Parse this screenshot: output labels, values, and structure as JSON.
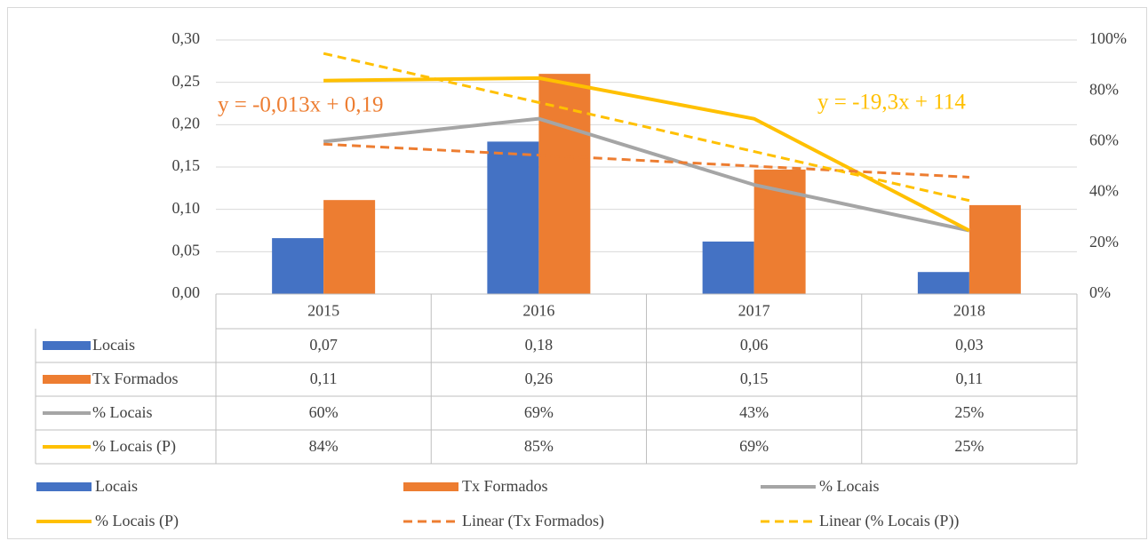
{
  "chart_data": {
    "type": "bar",
    "categories": [
      "2015",
      "2016",
      "2017",
      "2018"
    ],
    "series": [
      {
        "name": "Locais",
        "type": "bar",
        "color": "#4472c4",
        "values": [
          0.066,
          0.18,
          0.062,
          0.026
        ],
        "value_labels": [
          "0,07",
          "0,18",
          "0,06",
          "0,03"
        ]
      },
      {
        "name": "Tx Formados",
        "type": "bar",
        "color": "#ed7d31",
        "values": [
          0.111,
          0.26,
          0.147,
          0.105
        ],
        "value_labels": [
          "0,11",
          "0,26",
          "0,15",
          "0,11"
        ]
      },
      {
        "name": "% Locais",
        "type": "line",
        "axis": "y2",
        "color": "#a5a5a5",
        "values": [
          60,
          69,
          43,
          25
        ],
        "value_labels": [
          "60%",
          "69%",
          "43%",
          "25%"
        ]
      },
      {
        "name": "% Locais (P)",
        "type": "line",
        "axis": "y2",
        "color": "#ffc000",
        "values": [
          84,
          85,
          69,
          25
        ],
        "value_labels": [
          "84%",
          "85%",
          "69%",
          "25%"
        ]
      },
      {
        "name": "Linear (Tx Formados)",
        "type": "line",
        "style": "dashed",
        "color": "#ed7d31",
        "values": [
          0.177,
          0.164,
          0.151,
          0.138
        ]
      },
      {
        "name": "Linear (% Locais (P))",
        "type": "line",
        "style": "dashed",
        "axis": "y2",
        "color": "#ffc000",
        "values": [
          94.7,
          75.4,
          56.1,
          36.8
        ]
      }
    ],
    "annotations": [
      {
        "text": "y = -0,013x + 0,19",
        "color": "#ed7d31"
      },
      {
        "text": "y = -19,3x + 114",
        "color": "#ffc000"
      }
    ],
    "ylim": [
      0,
      0.3
    ],
    "yticks": [
      {
        "value": 0,
        "label": "0,00"
      },
      {
        "value": 0.05,
        "label": "0,05"
      },
      {
        "value": 0.1,
        "label": "0,10"
      },
      {
        "value": 0.15,
        "label": "0,15"
      },
      {
        "value": 0.2,
        "label": "0,20"
      },
      {
        "value": 0.25,
        "label": "0,25"
      },
      {
        "value": 0.3,
        "label": "0,30"
      }
    ],
    "y2lim": [
      0,
      100
    ],
    "y2ticks": [
      {
        "value": 0,
        "label": "0%"
      },
      {
        "value": 20,
        "label": "20%"
      },
      {
        "value": 40,
        "label": "40%"
      },
      {
        "value": 60,
        "label": "60%"
      },
      {
        "value": 80,
        "label": "80%"
      },
      {
        "value": 100,
        "label": "100%"
      }
    ],
    "grid": true,
    "data_table": true,
    "legend": "bottom"
  }
}
